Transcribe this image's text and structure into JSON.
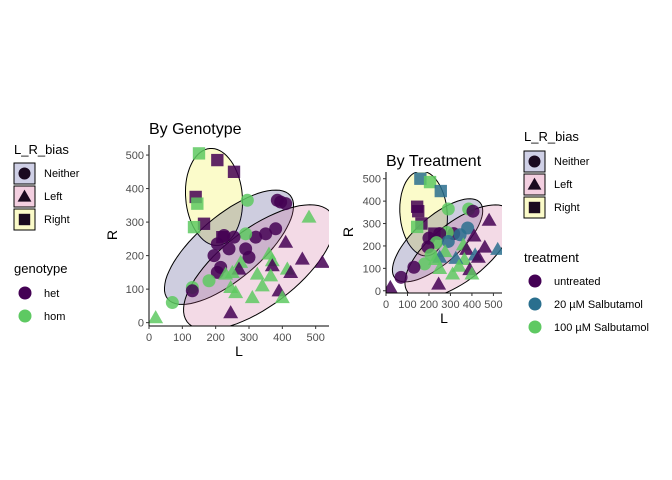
{
  "colors": {
    "untreated": "#440154",
    "salb20": "#2a6f8e",
    "salb100": "#5ec962",
    "het": "#440154",
    "hom": "#5ec962",
    "Neither": "#1f1a6f",
    "Left": "#c8588e",
    "Right": "#f5f57a",
    "Neither_key": "#cfd0e6",
    "Left_key": "#f3cfe0",
    "Right_key": "#fbfbc9"
  },
  "chart_data": [
    {
      "type": "scatter",
      "title": "By Genotype",
      "xlabel": "L",
      "ylabel": "R",
      "xlim": [
        0,
        540
      ],
      "ylim": [
        -10,
        530
      ],
      "xticks": [
        "0",
        "100",
        "200",
        "300",
        "400",
        "500"
      ],
      "yticks": [
        "0",
        "100",
        "200",
        "300",
        "400",
        "500"
      ],
      "color_by": "genotype",
      "ellipses": [
        {
          "group": "Right",
          "cx": 195,
          "cy": 375,
          "rx": 145,
          "ry": 85,
          "angle": 95
        },
        {
          "group": "Neither",
          "cx": 240,
          "cy": 225,
          "rx": 240,
          "ry": 95,
          "angle": 40
        },
        {
          "group": "Left",
          "cx": 330,
          "cy": 165,
          "rx": 270,
          "ry": 115,
          "angle": 37
        }
      ],
      "points": [
        {
          "x": 150,
          "y": 505,
          "bias": "Right",
          "genotype": "hom"
        },
        {
          "x": 205,
          "y": 485,
          "bias": "Right",
          "genotype": "het"
        },
        {
          "x": 255,
          "y": 450,
          "bias": "Right",
          "genotype": "het"
        },
        {
          "x": 140,
          "y": 375,
          "bias": "Right",
          "genotype": "het"
        },
        {
          "x": 145,
          "y": 355,
          "bias": "Right",
          "genotype": "hom"
        },
        {
          "x": 165,
          "y": 295,
          "bias": "Right",
          "genotype": "het"
        },
        {
          "x": 135,
          "y": 285,
          "bias": "Right",
          "genotype": "hom"
        },
        {
          "x": 220,
          "y": 255,
          "bias": "Right",
          "genotype": "het"
        },
        {
          "x": 295,
          "y": 365,
          "bias": "Neither",
          "genotype": "hom"
        },
        {
          "x": 385,
          "y": 365,
          "bias": "Neither",
          "genotype": "het"
        },
        {
          "x": 410,
          "y": 355,
          "bias": "Neither",
          "genotype": "het"
        },
        {
          "x": 395,
          "y": 360,
          "bias": "Neither",
          "genotype": "het"
        },
        {
          "x": 320,
          "y": 255,
          "bias": "Neither",
          "genotype": "het"
        },
        {
          "x": 350,
          "y": 265,
          "bias": "Neither",
          "genotype": "het"
        },
        {
          "x": 290,
          "y": 265,
          "bias": "Neither",
          "genotype": "hom"
        },
        {
          "x": 255,
          "y": 255,
          "bias": "Neither",
          "genotype": "het"
        },
        {
          "x": 380,
          "y": 280,
          "bias": "Neither",
          "genotype": "het"
        },
        {
          "x": 205,
          "y": 235,
          "bias": "Neither",
          "genotype": "het"
        },
        {
          "x": 225,
          "y": 260,
          "bias": "Neither",
          "genotype": "het"
        },
        {
          "x": 240,
          "y": 220,
          "bias": "Neither",
          "genotype": "het"
        },
        {
          "x": 290,
          "y": 220,
          "bias": "Neither",
          "genotype": "het"
        },
        {
          "x": 300,
          "y": 195,
          "bias": "Neither",
          "genotype": "het"
        },
        {
          "x": 195,
          "y": 200,
          "bias": "Neither",
          "genotype": "het"
        },
        {
          "x": 215,
          "y": 165,
          "bias": "Neither",
          "genotype": "het"
        },
        {
          "x": 205,
          "y": 150,
          "bias": "Neither",
          "genotype": "het"
        },
        {
          "x": 180,
          "y": 125,
          "bias": "Neither",
          "genotype": "hom"
        },
        {
          "x": 130,
          "y": 105,
          "bias": "Neither",
          "genotype": "hom"
        },
        {
          "x": 130,
          "y": 95,
          "bias": "Neither",
          "genotype": "het"
        },
        {
          "x": 70,
          "y": 60,
          "bias": "Neither",
          "genotype": "hom"
        },
        {
          "x": 480,
          "y": 315,
          "bias": "Left",
          "genotype": "hom"
        },
        {
          "x": 410,
          "y": 240,
          "bias": "Left",
          "genotype": "het"
        },
        {
          "x": 460,
          "y": 190,
          "bias": "Left",
          "genotype": "het"
        },
        {
          "x": 520,
          "y": 180,
          "bias": "Left",
          "genotype": "het"
        },
        {
          "x": 360,
          "y": 205,
          "bias": "Left",
          "genotype": "hom"
        },
        {
          "x": 370,
          "y": 185,
          "bias": "Left",
          "genotype": "hom"
        },
        {
          "x": 370,
          "y": 170,
          "bias": "Left",
          "genotype": "het"
        },
        {
          "x": 415,
          "y": 160,
          "bias": "Left",
          "genotype": "hom"
        },
        {
          "x": 425,
          "y": 150,
          "bias": "Left",
          "genotype": "het"
        },
        {
          "x": 365,
          "y": 140,
          "bias": "Left",
          "genotype": "hom"
        },
        {
          "x": 325,
          "y": 145,
          "bias": "Left",
          "genotype": "hom"
        },
        {
          "x": 275,
          "y": 180,
          "bias": "Left",
          "genotype": "hom"
        },
        {
          "x": 270,
          "y": 160,
          "bias": "Left",
          "genotype": "het"
        },
        {
          "x": 250,
          "y": 150,
          "bias": "Left",
          "genotype": "hom"
        },
        {
          "x": 230,
          "y": 145,
          "bias": "Left",
          "genotype": "hom"
        },
        {
          "x": 245,
          "y": 105,
          "bias": "Left",
          "genotype": "hom"
        },
        {
          "x": 260,
          "y": 90,
          "bias": "Left",
          "genotype": "hom"
        },
        {
          "x": 340,
          "y": 110,
          "bias": "Left",
          "genotype": "hom"
        },
        {
          "x": 390,
          "y": 95,
          "bias": "Left",
          "genotype": "het"
        },
        {
          "x": 310,
          "y": 75,
          "bias": "Left",
          "genotype": "hom"
        },
        {
          "x": 400,
          "y": 75,
          "bias": "Left",
          "genotype": "hom"
        },
        {
          "x": 245,
          "y": 30,
          "bias": "Left",
          "genotype": "het"
        },
        {
          "x": 20,
          "y": 15,
          "bias": "Left",
          "genotype": "hom"
        }
      ],
      "legends": [
        {
          "title": "L_R_bias",
          "kind": "bias",
          "items": [
            "Neither",
            "Left",
            "Right"
          ]
        },
        {
          "title": "genotype",
          "kind": "genotype",
          "items": [
            "het",
            "hom"
          ]
        }
      ]
    },
    {
      "type": "scatter",
      "title": "By Treatment",
      "xlabel": "L",
      "ylabel": "R",
      "xlim": [
        0,
        540
      ],
      "ylim": [
        -10,
        530
      ],
      "xticks": [
        "0",
        "100",
        "200",
        "300",
        "400",
        "500"
      ],
      "yticks": [
        "0",
        "100",
        "200",
        "300",
        "400",
        "500"
      ],
      "color_by": "treatment",
      "ellipses": [
        {
          "group": "Right",
          "cx": 175,
          "cy": 345,
          "rx": 190,
          "ry": 110,
          "angle": 95
        },
        {
          "group": "Neither",
          "cx": 240,
          "cy": 225,
          "rx": 260,
          "ry": 105,
          "angle": 40
        },
        {
          "group": "Left",
          "cx": 340,
          "cy": 175,
          "rx": 300,
          "ry": 130,
          "angle": 37
        }
      ],
      "points": [
        {
          "x": 160,
          "y": 500,
          "bias": "Right",
          "treatment": "20 µM Salbutamol"
        },
        {
          "x": 205,
          "y": 485,
          "bias": "Right",
          "treatment": "100 µM Salbutamol"
        },
        {
          "x": 255,
          "y": 445,
          "bias": "Right",
          "treatment": "20 µM Salbutamol"
        },
        {
          "x": 145,
          "y": 375,
          "bias": "Right",
          "treatment": "untreated"
        },
        {
          "x": 150,
          "y": 355,
          "bias": "Right",
          "treatment": "untreated"
        },
        {
          "x": 165,
          "y": 300,
          "bias": "Right",
          "treatment": "untreated"
        },
        {
          "x": 145,
          "y": 285,
          "bias": "Right",
          "treatment": "100 µM Salbutamol"
        },
        {
          "x": 225,
          "y": 255,
          "bias": "Right",
          "treatment": "untreated"
        },
        {
          "x": 290,
          "y": 365,
          "bias": "Neither",
          "treatment": "100 µM Salbutamol"
        },
        {
          "x": 385,
          "y": 365,
          "bias": "Neither",
          "treatment": "100 µM Salbutamol"
        },
        {
          "x": 405,
          "y": 355,
          "bias": "Neither",
          "treatment": "untreated"
        },
        {
          "x": 315,
          "y": 255,
          "bias": "Neither",
          "treatment": "untreated"
        },
        {
          "x": 345,
          "y": 250,
          "bias": "Neither",
          "treatment": "20 µM Salbutamol"
        },
        {
          "x": 285,
          "y": 260,
          "bias": "Neither",
          "treatment": "100 µM Salbutamol"
        },
        {
          "x": 250,
          "y": 255,
          "bias": "Neither",
          "treatment": "untreated"
        },
        {
          "x": 380,
          "y": 280,
          "bias": "Neither",
          "treatment": "20 µM Salbutamol"
        },
        {
          "x": 200,
          "y": 235,
          "bias": "Neither",
          "treatment": "untreated"
        },
        {
          "x": 235,
          "y": 215,
          "bias": "Neither",
          "treatment": "100 µM Salbutamol"
        },
        {
          "x": 290,
          "y": 220,
          "bias": "Neither",
          "treatment": "20 µM Salbutamol"
        },
        {
          "x": 195,
          "y": 195,
          "bias": "Neither",
          "treatment": "untreated"
        },
        {
          "x": 210,
          "y": 160,
          "bias": "Neither",
          "treatment": "100 µM Salbutamol"
        },
        {
          "x": 180,
          "y": 120,
          "bias": "Neither",
          "treatment": "100 µM Salbutamol"
        },
        {
          "x": 130,
          "y": 105,
          "bias": "Neither",
          "treatment": "untreated"
        },
        {
          "x": 70,
          "y": 60,
          "bias": "Neither",
          "treatment": "untreated"
        },
        {
          "x": 480,
          "y": 315,
          "bias": "Left",
          "treatment": "untreated"
        },
        {
          "x": 410,
          "y": 245,
          "bias": "Left",
          "treatment": "untreated"
        },
        {
          "x": 460,
          "y": 195,
          "bias": "Left",
          "treatment": "untreated"
        },
        {
          "x": 520,
          "y": 185,
          "bias": "Left",
          "treatment": "20 µM Salbutamol"
        },
        {
          "x": 360,
          "y": 205,
          "bias": "Left",
          "treatment": "100 µM Salbutamol"
        },
        {
          "x": 375,
          "y": 185,
          "bias": "Left",
          "treatment": "untreated"
        },
        {
          "x": 415,
          "y": 160,
          "bias": "Left",
          "treatment": "20 µM Salbutamol"
        },
        {
          "x": 430,
          "y": 150,
          "bias": "Left",
          "treatment": "untreated"
        },
        {
          "x": 365,
          "y": 140,
          "bias": "Left",
          "treatment": "100 µM Salbutamol"
        },
        {
          "x": 325,
          "y": 145,
          "bias": "Left",
          "treatment": "20 µM Salbutamol"
        },
        {
          "x": 275,
          "y": 175,
          "bias": "Left",
          "treatment": "100 µM Salbutamol"
        },
        {
          "x": 250,
          "y": 150,
          "bias": "Left",
          "treatment": "20 µM Salbutamol"
        },
        {
          "x": 230,
          "y": 140,
          "bias": "Left",
          "treatment": "100 µM Salbutamol"
        },
        {
          "x": 250,
          "y": 100,
          "bias": "Left",
          "treatment": "100 µM Salbutamol"
        },
        {
          "x": 340,
          "y": 110,
          "bias": "Left",
          "treatment": "100 µM Salbutamol"
        },
        {
          "x": 390,
          "y": 95,
          "bias": "Left",
          "treatment": "untreated"
        },
        {
          "x": 310,
          "y": 75,
          "bias": "Left",
          "treatment": "100 µM Salbutamol"
        },
        {
          "x": 400,
          "y": 75,
          "bias": "Left",
          "treatment": "100 µM Salbutamol"
        },
        {
          "x": 245,
          "y": 30,
          "bias": "Left",
          "treatment": "untreated"
        },
        {
          "x": 20,
          "y": 15,
          "bias": "Left",
          "treatment": "untreated"
        }
      ],
      "legends": [
        {
          "title": "L_R_bias",
          "kind": "bias",
          "items": [
            "Neither",
            "Left",
            "Right"
          ]
        },
        {
          "title": "treatment",
          "kind": "treatment",
          "items": [
            "untreated",
            "20 µM Salbutamol",
            "100 µM Salbutamol"
          ]
        }
      ]
    }
  ]
}
